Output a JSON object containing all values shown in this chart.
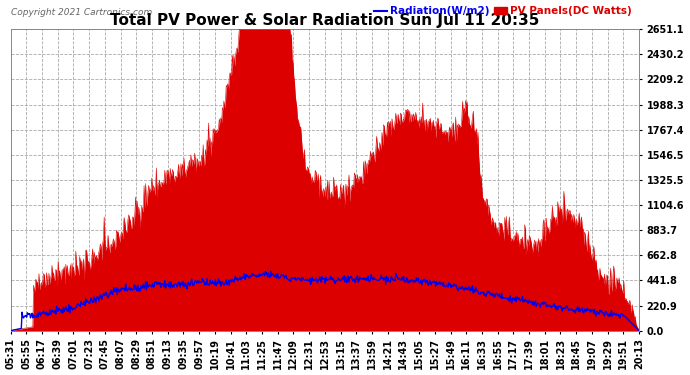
{
  "title": "Total PV Power & Solar Radiation Sun Jul 11 20:35",
  "copyright": "Copyright 2021 Cartronics.com",
  "legend_radiation": "Radiation(W/m2)",
  "legend_pv": "PV Panels(DC Watts)",
  "yticks": [
    0.0,
    220.9,
    441.8,
    662.8,
    883.7,
    1104.6,
    1325.5,
    1546.5,
    1767.4,
    1988.3,
    2209.2,
    2430.2,
    2651.1
  ],
  "ymax": 2651.1,
  "bg_color": "#ffffff",
  "grid_color": "#aaaaaa",
  "radiation_color": "#0000ee",
  "pv_color": "#dd0000",
  "title_fontsize": 11,
  "tick_fontsize": 7,
  "xtick_labels": [
    "05:31",
    "05:55",
    "06:17",
    "06:39",
    "07:01",
    "07:23",
    "07:45",
    "08:07",
    "08:29",
    "08:51",
    "09:13",
    "09:35",
    "09:57",
    "10:19",
    "10:41",
    "11:03",
    "11:25",
    "11:47",
    "12:09",
    "12:31",
    "12:53",
    "13:15",
    "13:37",
    "13:59",
    "14:21",
    "14:43",
    "15:05",
    "15:27",
    "15:49",
    "16:11",
    "16:33",
    "16:55",
    "17:17",
    "17:39",
    "18:01",
    "18:23",
    "18:45",
    "19:07",
    "19:29",
    "19:51",
    "20:13"
  ]
}
